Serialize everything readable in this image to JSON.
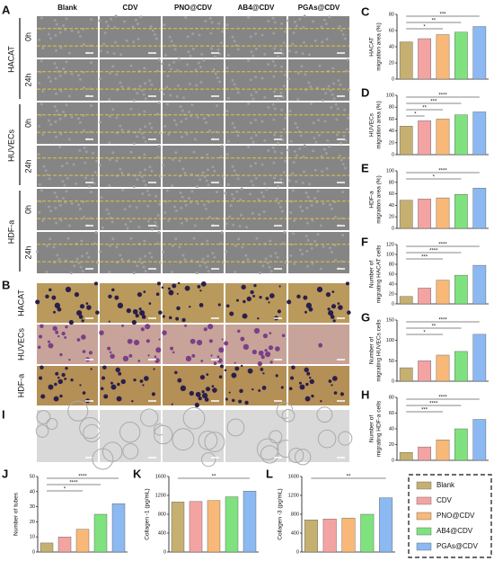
{
  "columns": [
    "Blank",
    "CDV",
    "PNO@CDV",
    "AB4@CDV",
    "PGAs@CDV"
  ],
  "panel_labels": {
    "a": "A",
    "b": "B",
    "i": "I"
  },
  "panel_a": {
    "groups": [
      {
        "name": "HACAT",
        "rows": [
          "0h",
          "24h"
        ]
      },
      {
        "name": "HUVECs",
        "rows": [
          "0h",
          "24h"
        ]
      },
      {
        "name": "HDF-a",
        "rows": [
          "0h",
          "24h"
        ]
      }
    ]
  },
  "panel_b": {
    "rows": [
      "HACAT",
      "HUVECs",
      "HDF-a"
    ]
  },
  "legend": [
    {
      "name": "Blank",
      "color": "#c5b071"
    },
    {
      "name": "CDV",
      "color": "#f4a3a3"
    },
    {
      "name": "PNO@CDV",
      "color": "#f8b878"
    },
    {
      "name": "AB4@CDV",
      "color": "#7fe27f"
    },
    {
      "name": "PGAs@CDV",
      "color": "#8cb9f2"
    }
  ],
  "chart_data": [
    {
      "type": "bar",
      "label": "C",
      "ylabel": [
        "HACAT",
        "migration area (%)"
      ],
      "values": [
        46,
        50,
        55,
        58,
        65
      ],
      "ylim": [
        0,
        80
      ],
      "yticks": [
        0,
        20,
        40,
        60,
        80
      ],
      "significance": [
        "***",
        "**",
        "*"
      ]
    },
    {
      "type": "bar",
      "label": "D",
      "ylabel": [
        "HUVECs",
        "migration area (%)"
      ],
      "values": [
        48,
        57,
        60,
        67,
        72
      ],
      "ylim": [
        0,
        100
      ],
      "yticks": [
        0,
        20,
        40,
        60,
        80,
        100
      ],
      "significance": [
        "****",
        "***",
        "**",
        "*"
      ]
    },
    {
      "type": "bar",
      "label": "E",
      "ylabel": [
        "HDF-a",
        "migration area (%)"
      ],
      "values": [
        49,
        51,
        53,
        59,
        70
      ],
      "ylim": [
        0,
        100
      ],
      "yticks": [
        0,
        20,
        40,
        60,
        80,
        100
      ],
      "significance": [
        "****",
        "*"
      ]
    },
    {
      "type": "bar",
      "label": "F",
      "ylabel": [
        "Number of",
        "migrating HACAT cells"
      ],
      "values": [
        15,
        32,
        48,
        58,
        78
      ],
      "ylim": [
        0,
        120
      ],
      "yticks": [
        0,
        20,
        40,
        60,
        80,
        100,
        120
      ],
      "significance": [
        "****",
        "****",
        "***"
      ]
    },
    {
      "type": "bar",
      "label": "G",
      "ylabel": [
        "Number of",
        "migrating HUVECs cells"
      ],
      "values": [
        33,
        50,
        64,
        73,
        115
      ],
      "ylim": [
        0,
        150
      ],
      "yticks": [
        0,
        50,
        100,
        150
      ],
      "significance": [
        "****",
        "**",
        "*"
      ]
    },
    {
      "type": "bar",
      "label": "H",
      "ylabel": [
        "Number of",
        "migrating HDF-a cells"
      ],
      "values": [
        10,
        17,
        26,
        40,
        52
      ],
      "ylim": [
        0,
        80
      ],
      "yticks": [
        0,
        20,
        40,
        60,
        80
      ],
      "significance": [
        "****",
        "****",
        "***"
      ]
    },
    {
      "type": "bar",
      "label": "J",
      "ylabel": [
        "Number of tubes"
      ],
      "values": [
        6,
        10,
        15,
        25,
        32
      ],
      "ylim": [
        0,
        50
      ],
      "yticks": [
        0,
        10,
        20,
        30,
        40,
        50
      ],
      "significance": [
        "****",
        "****",
        "*"
      ]
    },
    {
      "type": "bar",
      "label": "K",
      "ylabel": [
        "Collagen -1 (pg/mL)"
      ],
      "values": [
        1060,
        1070,
        1090,
        1170,
        1290
      ],
      "ylim": [
        0,
        1600
      ],
      "yticks": [
        0,
        400,
        800,
        1200,
        1600
      ],
      "significance": [
        "**"
      ]
    },
    {
      "type": "bar",
      "label": "L",
      "ylabel": [
        "Collagen -3 (pg/mL)"
      ],
      "values": [
        680,
        700,
        720,
        800,
        1150
      ],
      "ylim": [
        0,
        1600
      ],
      "yticks": [
        0,
        400,
        800,
        1200,
        1600
      ],
      "significance": [
        "**"
      ]
    }
  ]
}
